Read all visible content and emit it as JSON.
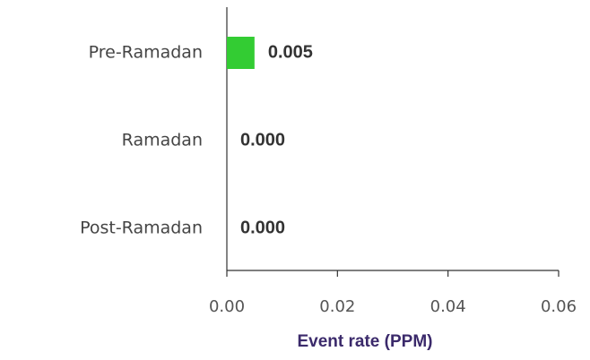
{
  "chart_data": {
    "type": "bar",
    "orientation": "horizontal",
    "categories": [
      "Pre-Ramadan",
      "Ramadan",
      "Post-Ramadan"
    ],
    "values": [
      0.005,
      0,
      0
    ],
    "value_labels": [
      "0.005",
      "0.000",
      "0.000"
    ],
    "color": "#33cc33",
    "x_label": "Event rate (PPM)",
    "xlim": [
      0,
      0.06
    ],
    "xticks": [
      {
        "value": 0,
        "label": "0.00"
      },
      {
        "value": 0.02,
        "label": "0.02"
      },
      {
        "value": 0.04,
        "label": "0.04"
      },
      {
        "value": 0.06,
        "label": "0.06"
      }
    ]
  }
}
